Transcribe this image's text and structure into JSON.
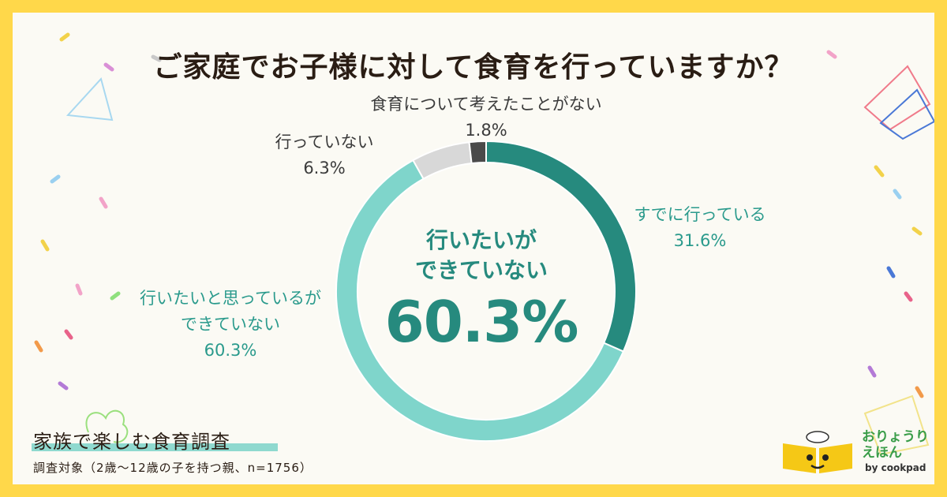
{
  "title": "ご家庭でお子様に対して食育を行っていますか？",
  "chart_data": {
    "type": "donut",
    "title": "ご家庭でお子様に対して食育を行っていますか？",
    "unit": "%",
    "slices": [
      {
        "label": "すでに行っている",
        "value": 31.6,
        "color": "#268a7e"
      },
      {
        "label": "行いたいと思っているができていない",
        "value": 60.3,
        "color": "#7fd5cb"
      },
      {
        "label": "行っていない",
        "value": 6.3,
        "color": "#d8d8d8"
      },
      {
        "label": "食育について考えたことがない",
        "value": 1.8,
        "color": "#4a4a4a"
      }
    ],
    "center_label": "行いたいができていない",
    "center_value": "60.3%"
  },
  "labels": {
    "never": {
      "text": "食育について考えたことがない",
      "pct": "1.8%"
    },
    "not_doing": {
      "text": "行っていない",
      "pct": "6.3%"
    },
    "already": {
      "text": "すでに行っている",
      "pct": "31.6%"
    },
    "want_line1": "行いたいと思っているが",
    "want_line2": "できていない",
    "want_pct": "60.3%"
  },
  "center": {
    "line1": "行いたいが",
    "line2": "できていない",
    "value": "60.3%"
  },
  "survey": {
    "title": "家族で楽しむ食育調査",
    "note": "調査対象（2歳〜12歳の子を持つ親、n=1756）"
  },
  "brand": {
    "line1": "おりょうり",
    "line2": "えほん",
    "by": "by cookpad"
  },
  "colors": {
    "frame": "#ffd84a",
    "background": "#fbfaf4",
    "accent": "#268a7e",
    "accent_light": "#7fd5cb"
  }
}
